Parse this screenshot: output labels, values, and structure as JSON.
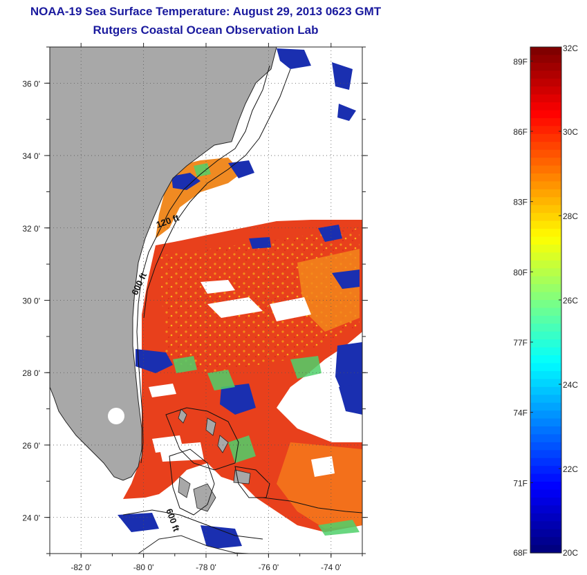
{
  "header": {
    "title": "NOAA-19 Sea Surface Temperature:  August 29, 2013 0623 GMT",
    "subtitle": "Rutgers Coastal Ocean Observation Lab"
  },
  "map": {
    "lon_range": [
      -83,
      -73
    ],
    "lat_range": [
      23,
      37
    ],
    "lon_ticks": [
      {
        "value": -82,
        "label": "-82 0'"
      },
      {
        "value": -80,
        "label": "-80 0'"
      },
      {
        "value": -78,
        "label": "-78 0'"
      },
      {
        "value": -76,
        "label": "-76 0'"
      },
      {
        "value": -74,
        "label": "-74 0'"
      }
    ],
    "lat_ticks": [
      {
        "value": 24,
        "label": "24 0'"
      },
      {
        "value": 26,
        "label": "26 0'"
      },
      {
        "value": 28,
        "label": "28 0'"
      },
      {
        "value": 30,
        "label": "30 0'"
      },
      {
        "value": 32,
        "label": "32 0'"
      },
      {
        "value": 34,
        "label": "34 0'"
      },
      {
        "value": 36,
        "label": "36 0'"
      }
    ],
    "grid": true,
    "contour_labels": [
      "120 ft",
      "600 ft",
      "600 ft"
    ],
    "colors": {
      "land": "#a8a8a8",
      "cloud": "#ffffff",
      "warm": "#e8401c",
      "cool": "#1a2fb0"
    }
  },
  "colorbar": {
    "celsius_range": [
      20,
      32
    ],
    "fahrenheit_range": [
      68,
      89.6
    ],
    "celsius_labels": [
      "32C",
      "30C",
      "28C",
      "26C",
      "24C",
      "22C",
      "20C"
    ],
    "fahrenheit_labels": [
      "89F",
      "86F",
      "83F",
      "80F",
      "77F",
      "74F",
      "71F",
      "68F"
    ],
    "colormap": "jet"
  }
}
